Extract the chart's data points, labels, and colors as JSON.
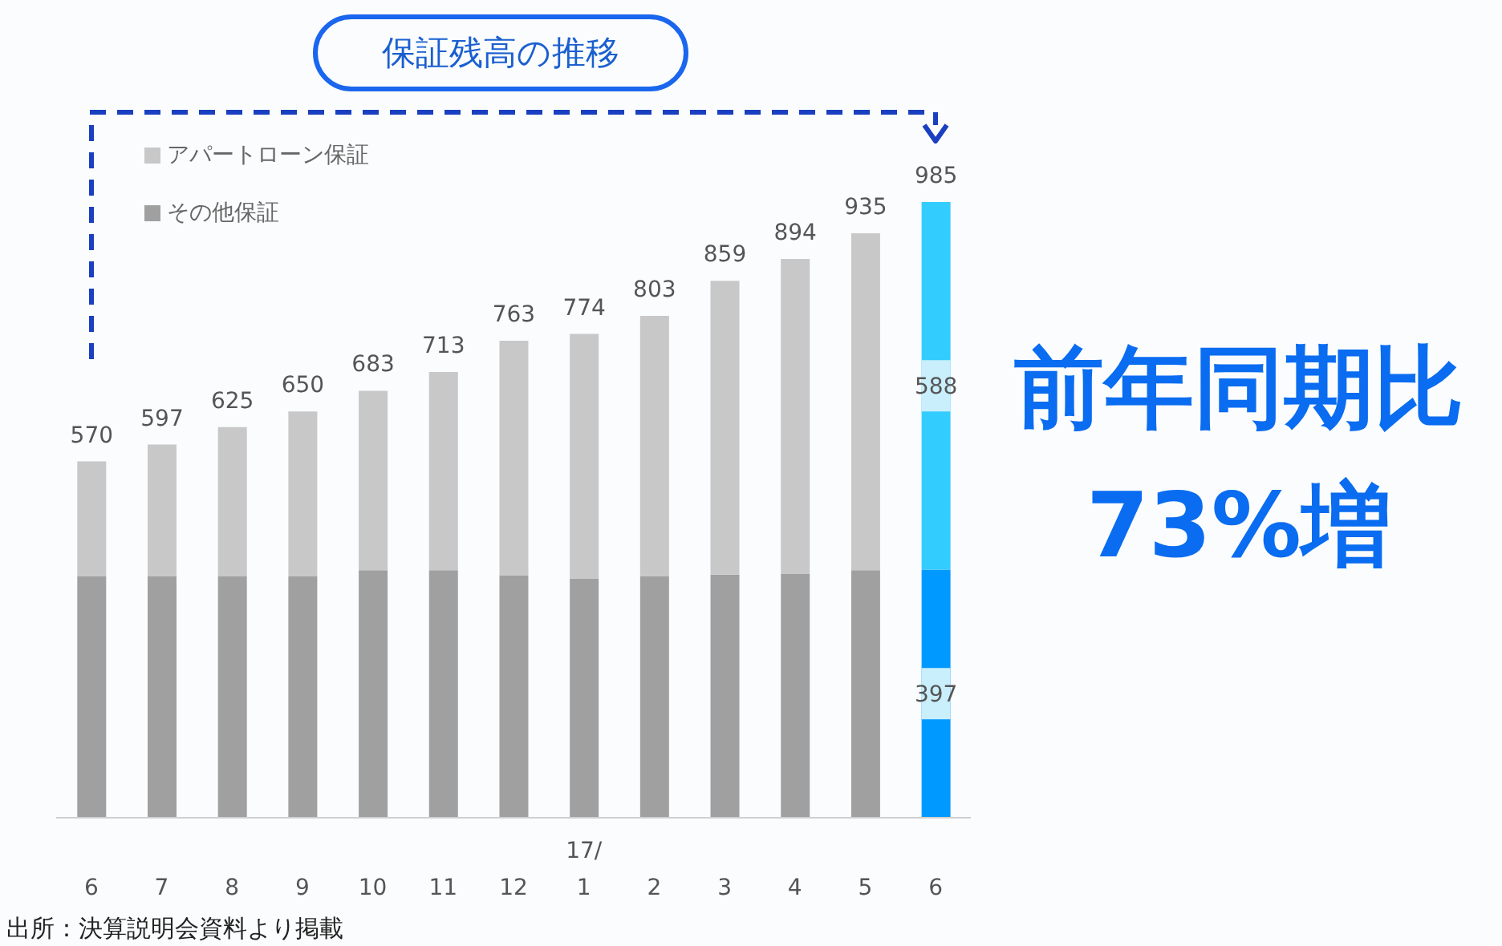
{
  "chart_data": {
    "type": "bar",
    "stacked": true,
    "title": "保証残高の推移",
    "categories": [
      "6",
      "7",
      "8",
      "9",
      "10",
      "11",
      "12",
      "17/\n1",
      "2",
      "3",
      "4",
      "5",
      "6"
    ],
    "series": [
      {
        "name": "その他保証",
        "color": "#a0a0a0",
        "colors": [
          "#a0a0a0",
          "#a0a0a0",
          "#a0a0a0",
          "#a0a0a0",
          "#a0a0a0",
          "#a0a0a0",
          "#a0a0a0",
          "#a0a0a0",
          "#a0a0a0",
          "#a0a0a0",
          "#a0a0a0",
          "#a0a0a0",
          "#0099ff"
        ],
        "values": [
          386,
          386,
          386,
          386,
          396,
          396,
          388,
          383,
          386,
          389,
          390,
          396,
          397
        ],
        "value_labels": [
          null,
          null,
          null,
          null,
          null,
          null,
          null,
          null,
          null,
          null,
          null,
          null,
          "397"
        ]
      },
      {
        "name": "アパートローン保証",
        "color": "#c8c8c8",
        "colors": [
          "#c8c8c8",
          "#c8c8c8",
          "#c8c8c8",
          "#c8c8c8",
          "#c8c8c8",
          "#c8c8c8",
          "#c8c8c8",
          "#c8c8c8",
          "#c8c8c8",
          "#c8c8c8",
          "#c8c8c8",
          "#c8c8c8",
          "#33ccff"
        ],
        "values": [
          184,
          211,
          239,
          264,
          287,
          317,
          375,
          391,
          417,
          470,
          504,
          539,
          588
        ],
        "value_labels": [
          null,
          null,
          null,
          null,
          null,
          null,
          null,
          null,
          null,
          null,
          null,
          null,
          "588"
        ]
      }
    ],
    "totals": [
      "570",
      "597",
      "625",
      "650",
      "683",
      "713",
      "763",
      "774",
      "803",
      "859",
      "894",
      "935",
      "985"
    ],
    "legend": "top left",
    "annotations": [
      "前年同期比\n73%増",
      "出所：決算説明会資料より掲載"
    ]
  }
}
